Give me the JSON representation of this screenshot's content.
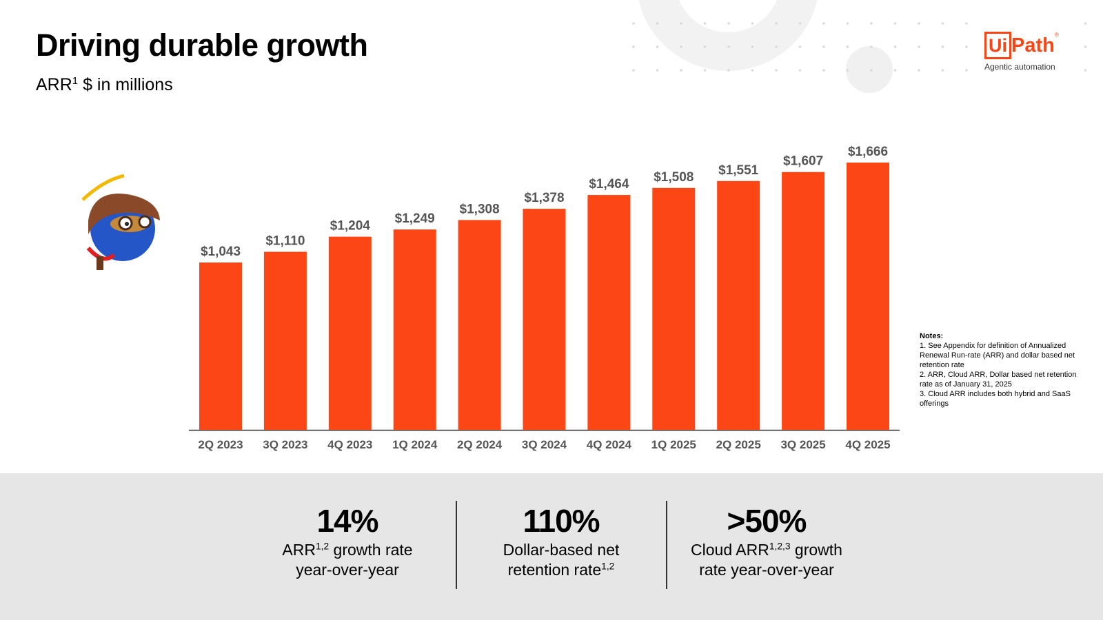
{
  "header": {
    "title": "Driving durable growth",
    "subtitle": [
      "ARR",
      "1",
      " $ in millions"
    ]
  },
  "logo": {
    "box": "Ui",
    "text": "Path",
    "mark": "®",
    "tagline": "Agentic automation"
  },
  "chart_data": {
    "type": "bar",
    "color": "#fc4616",
    "categories": [
      "2Q 2023",
      "3Q 2023",
      "4Q 2023",
      "1Q 2024",
      "2Q 2024",
      "3Q 2024",
      "4Q 2024",
      "1Q 2025",
      "2Q 2025",
      "3Q 2025",
      "4Q 2025"
    ],
    "values": [
      1043,
      1110,
      1204,
      1249,
      1308,
      1378,
      1464,
      1508,
      1551,
      1607,
      1666
    ],
    "value_labels": [
      "$1,043",
      "$1,110",
      "$1,204",
      "$1,249",
      "$1,308",
      "$1,378",
      "$1,464",
      "$1,508",
      "$1,551",
      "$1,607",
      "$1,666"
    ]
  },
  "notes": {
    "title": "Notes:",
    "items": [
      "1. See Appendix for definition of Annualized Renewal Run-rate (ARR) and dollar based net retention rate",
      "2. ARR, Cloud ARR, Dollar based net retention rate as of January 31, 2025",
      "3. Cloud ARR includes both hybrid and SaaS offerings"
    ]
  },
  "stats": [
    {
      "value": "14%",
      "label": [
        "ARR",
        "1,2",
        " growth rate year-over-year"
      ]
    },
    {
      "value": "110%",
      "label": [
        "Dollar-based net retention rate",
        "1,2",
        ""
      ]
    },
    {
      "value": ">50%",
      "label": [
        "Cloud ARR",
        "1,2,3",
        " growth rate year-over-year"
      ]
    }
  ]
}
